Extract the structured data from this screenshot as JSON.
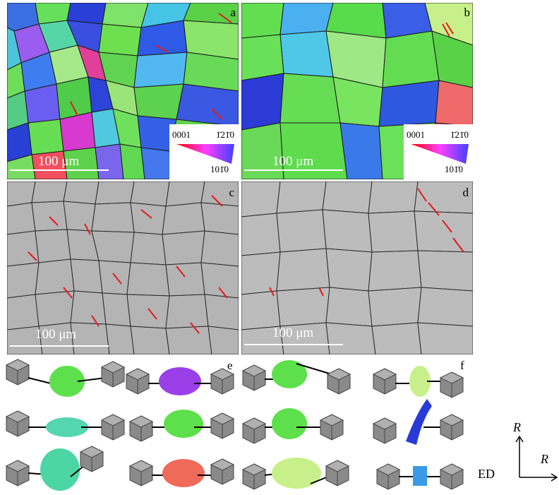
{
  "panels": {
    "a": {
      "label": "a",
      "scale_text": "100  μm"
    },
    "b": {
      "label": "b",
      "scale_text": "100  μm"
    },
    "c": {
      "label": "c",
      "scale_text": "100  μm"
    },
    "d": {
      "label": "d",
      "scale_text": "100  μm"
    },
    "e": {
      "label": "e"
    },
    "f": {
      "label": "f"
    }
  },
  "legend": {
    "basal": "0001",
    "prism1": "1̄21̄0",
    "prism2": "101̄0"
  },
  "axes": {
    "vertical": "R",
    "horizontal": "R",
    "direction": "ED"
  },
  "colors": {
    "twin_boundary": "#e41a1c",
    "grain_boundary": "#222222"
  }
}
